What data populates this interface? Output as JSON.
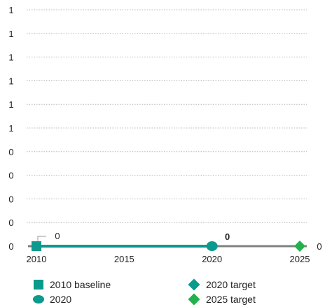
{
  "chart_data": {
    "type": "line",
    "x_ticks": [
      "2010",
      "2015",
      "2020",
      "2025"
    ],
    "y_ticks": [
      "0",
      "0",
      "0",
      "0",
      "0",
      "1",
      "1",
      "1",
      "1",
      "1",
      "1"
    ],
    "xlim": [
      2010,
      2025
    ],
    "ylim": [
      0,
      1
    ],
    "grid": true,
    "legend_position": "bottom",
    "annotations": [
      "0",
      "0",
      "0"
    ],
    "series": [
      {
        "name": "2010 baseline",
        "x": [
          2010
        ],
        "y": [
          0
        ],
        "marker": "square",
        "color": "#0a9a8e"
      },
      {
        "name": "2020",
        "x": [
          2020
        ],
        "y": [
          0
        ],
        "marker": "ellipse",
        "color": "#0a9a8e"
      },
      {
        "name": "2020 target",
        "x": [
          2020
        ],
        "y": [
          0
        ],
        "marker": "diamond",
        "color": "#0a9a8e"
      },
      {
        "name": "2025 target",
        "x": [
          2025
        ],
        "y": [
          0
        ],
        "marker": "diamond",
        "color": "#22b14c"
      }
    ],
    "colors": {
      "progress": "#0a9a8e",
      "remaining": "#808080",
      "grid": "#b8b8b8",
      "target_2025": "#22b14c"
    }
  }
}
